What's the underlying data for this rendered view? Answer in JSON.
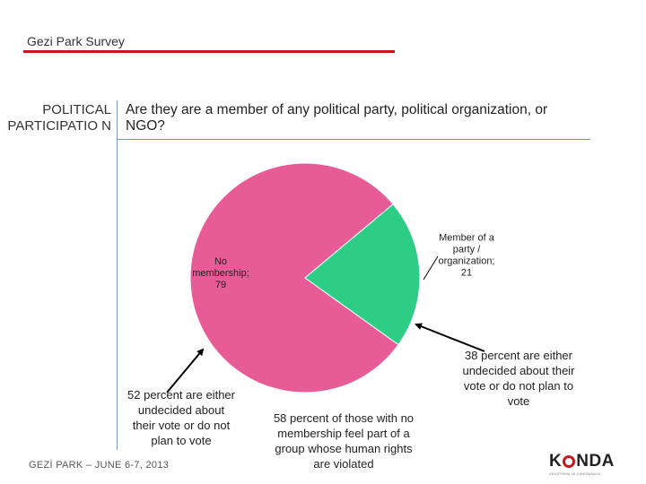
{
  "header": {
    "title": "Gezi Park Survey"
  },
  "section": {
    "label": "POLITICAL PARTICIPATIO N"
  },
  "question": "Are they are a member of any political party, political organization, or NGO?",
  "chart_data": {
    "type": "pie",
    "title": "",
    "slices": [
      {
        "label": "No membership;",
        "value": 79,
        "color": "#e75b97"
      },
      {
        "label": "Member of a party / organization;",
        "value": 21,
        "color": "#2ecd86"
      }
    ]
  },
  "annotations": {
    "left": "52 percent are either undecided about their vote or do not plan to vote",
    "middle": "58 percent of those with no membership feel part of a group whose human rights are violated",
    "right": "38 percent are either undecided about their vote or do not plan to vote"
  },
  "footer": {
    "text": "GEZİ PARK – JUNE 6-7, 2013"
  },
  "logo": {
    "k": "K",
    "nda": "NDA"
  }
}
